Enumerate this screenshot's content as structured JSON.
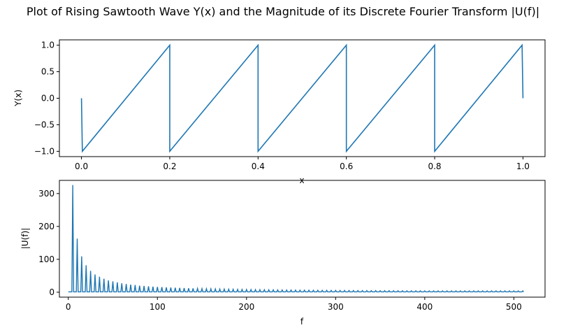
{
  "figure": {
    "title": "Plot of Rising Sawtooth Wave Y(x) and the Magnitude of its Discrete Fourier Transform |U(f)|"
  },
  "chart_data": [
    {
      "type": "line",
      "xlabel": "x",
      "ylabel": "Y(x)",
      "xlim": [
        -0.05,
        1.05
      ],
      "ylim": [
        -1.1,
        1.1
      ],
      "xticks": [
        "0.0",
        "0.2",
        "0.4",
        "0.6",
        "0.8",
        "1.0"
      ],
      "yticks": [
        "−1.0",
        "−0.5",
        "0.0",
        "0.5",
        "1.0"
      ],
      "color": "#1f77b4",
      "series": [
        {
          "x": [
            0.0,
            0.002,
            0.2,
            0.2,
            0.4,
            0.4,
            0.6,
            0.6,
            0.8,
            0.8,
            0.998,
            1.0
          ],
          "y": [
            0.0,
            -1.0,
            1.0,
            -1.0,
            1.0,
            -1.0,
            1.0,
            -1.0,
            1.0,
            -1.0,
            1.0,
            0.0
          ]
        }
      ]
    },
    {
      "type": "line",
      "xlabel": "f",
      "ylabel": "|U(f)|",
      "xlim": [
        -10,
        535
      ],
      "ylim": [
        -15,
        340
      ],
      "xticks": [
        "0",
        "100",
        "200",
        "300",
        "400",
        "500"
      ],
      "yticks": [
        "0",
        "100",
        "200",
        "300"
      ],
      "color": "#1f77b4",
      "fundamental_hz": 5,
      "max_f": 511,
      "peaks": {
        "f": [
          5,
          10,
          15,
          20,
          25,
          30,
          35,
          40,
          45,
          50,
          55,
          60,
          65,
          70,
          75,
          80,
          85,
          90,
          95,
          100
        ],
        "value": [
          326,
          163,
          109,
          82,
          65,
          54,
          47,
          41,
          36,
          33,
          30,
          27,
          25,
          23,
          22,
          20,
          19,
          18,
          17,
          16
        ]
      },
      "peak_floor": 4
    }
  ]
}
